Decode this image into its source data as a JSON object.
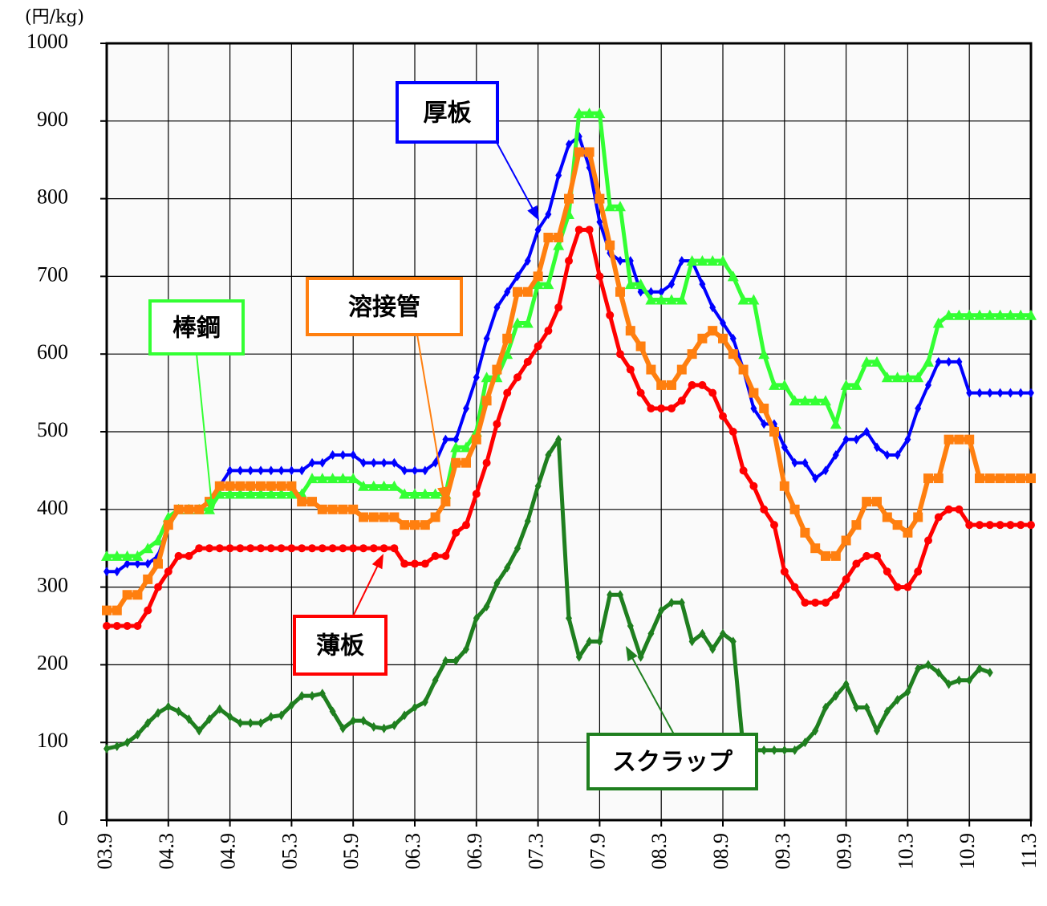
{
  "chart_data": {
    "type": "line",
    "ylabel": "(円/kg)",
    "categories": [
      "03.9",
      null,
      null,
      null,
      null,
      null,
      "04.3",
      null,
      null,
      null,
      null,
      null,
      "04.9",
      null,
      null,
      null,
      null,
      null,
      "05.3",
      null,
      null,
      null,
      null,
      null,
      "05.9",
      null,
      null,
      null,
      null,
      null,
      "06.3",
      null,
      null,
      null,
      null,
      null,
      "06.9",
      null,
      null,
      null,
      null,
      null,
      "07.3",
      null,
      null,
      null,
      null,
      null,
      "07.9",
      null,
      null,
      null,
      null,
      null,
      "08.3",
      null,
      null,
      null,
      null,
      null,
      "08.9",
      null,
      null,
      null,
      null,
      null,
      "09.3",
      null,
      null,
      null,
      null,
      null,
      "09.9",
      null,
      null,
      null,
      null,
      null,
      "10.3",
      null,
      null,
      null,
      null,
      null,
      "10.9",
      null,
      null,
      null,
      null,
      null,
      "11.3"
    ],
    "ylim": [
      0,
      1000
    ],
    "yticks": [
      0,
      100,
      200,
      300,
      400,
      500,
      600,
      700,
      800,
      900,
      1000
    ],
    "grid": true,
    "series": [
      {
        "name": "スクラップ",
        "color": "#1f7f1f",
        "marker": "diamond",
        "values": [
          92,
          95,
          100,
          110,
          125,
          138,
          146,
          140,
          130,
          115,
          130,
          143,
          133,
          125,
          125,
          125,
          133,
          135,
          148,
          160,
          160,
          163,
          140,
          118,
          128,
          128,
          120,
          118,
          122,
          135,
          145,
          152,
          180,
          205,
          205,
          220,
          260,
          275,
          305,
          325,
          350,
          385,
          430,
          470,
          490,
          260,
          210,
          230,
          230,
          290,
          290,
          250,
          210,
          240,
          270,
          280,
          280,
          230,
          240,
          220,
          240,
          230,
          90,
          90,
          90,
          90,
          90,
          90,
          100,
          115,
          145,
          160,
          175,
          145,
          145,
          115,
          140,
          155,
          165,
          195,
          200,
          190,
          175,
          180,
          180,
          195,
          190,
          null,
          null,
          null,
          null
        ]
      },
      {
        "name": "厚板",
        "color": "#0000ff",
        "marker": "diamond",
        "values": [
          320,
          320,
          330,
          330,
          330,
          340,
          380,
          400,
          400,
          400,
          410,
          430,
          450,
          450,
          450,
          450,
          450,
          450,
          450,
          450,
          460,
          460,
          470,
          470,
          470,
          460,
          460,
          460,
          460,
          450,
          450,
          450,
          460,
          490,
          490,
          530,
          570,
          620,
          660,
          680,
          700,
          720,
          760,
          780,
          830,
          870,
          880,
          840,
          770,
          730,
          720,
          720,
          680,
          680,
          680,
          690,
          720,
          720,
          690,
          660,
          640,
          620,
          580,
          530,
          510,
          510,
          480,
          460,
          460,
          440,
          450,
          470,
          490,
          490,
          500,
          480,
          470,
          470,
          490,
          530,
          560,
          590,
          590,
          590,
          550,
          550,
          550,
          550,
          550,
          550,
          550
        ]
      },
      {
        "name": "棒鋼",
        "color": "#33ff33",
        "marker": "triangle",
        "values": [
          340,
          340,
          340,
          340,
          350,
          360,
          390,
          400,
          400,
          400,
          400,
          420,
          420,
          420,
          420,
          420,
          420,
          420,
          420,
          420,
          440,
          440,
          440,
          440,
          440,
          430,
          430,
          430,
          430,
          420,
          420,
          420,
          420,
          420,
          480,
          480,
          500,
          570,
          570,
          600,
          640,
          640,
          690,
          690,
          740,
          780,
          910,
          910,
          910,
          790,
          790,
          690,
          690,
          670,
          670,
          670,
          670,
          720,
          720,
          720,
          720,
          700,
          670,
          670,
          600,
          560,
          560,
          540,
          540,
          540,
          540,
          510,
          560,
          560,
          590,
          590,
          570,
          570,
          570,
          570,
          590,
          640,
          650,
          650,
          650,
          650,
          650,
          650,
          650,
          650,
          650
        ]
      },
      {
        "name": "薄板",
        "color": "#ff0000",
        "marker": "circle",
        "values": [
          250,
          250,
          250,
          250,
          270,
          300,
          320,
          340,
          340,
          350,
          350,
          350,
          350,
          350,
          350,
          350,
          350,
          350,
          350,
          350,
          350,
          350,
          350,
          350,
          350,
          350,
          350,
          350,
          350,
          330,
          330,
          330,
          340,
          340,
          370,
          380,
          420,
          460,
          510,
          550,
          570,
          590,
          610,
          630,
          660,
          720,
          760,
          760,
          700,
          650,
          600,
          580,
          550,
          530,
          530,
          530,
          540,
          560,
          560,
          550,
          520,
          500,
          450,
          430,
          400,
          380,
          320,
          300,
          280,
          280,
          280,
          290,
          310,
          330,
          340,
          340,
          320,
          300,
          300,
          320,
          360,
          390,
          400,
          400,
          380,
          380,
          380,
          380,
          380,
          380,
          380
        ]
      },
      {
        "name": "溶接管",
        "color": "#ff7f0f",
        "marker": "square",
        "values": [
          270,
          270,
          290,
          290,
          310,
          330,
          380,
          400,
          400,
          400,
          410,
          430,
          430,
          430,
          430,
          430,
          430,
          430,
          430,
          410,
          410,
          400,
          400,
          400,
          400,
          390,
          390,
          390,
          390,
          380,
          380,
          380,
          390,
          410,
          460,
          460,
          490,
          540,
          580,
          620,
          680,
          680,
          700,
          750,
          750,
          800,
          860,
          860,
          800,
          740,
          680,
          630,
          610,
          580,
          560,
          560,
          580,
          600,
          620,
          630,
          620,
          600,
          580,
          550,
          530,
          500,
          430,
          400,
          370,
          350,
          340,
          340,
          360,
          380,
          410,
          410,
          390,
          380,
          370,
          390,
          440,
          440,
          490,
          490,
          490,
          440,
          440,
          440,
          440,
          440,
          440
        ]
      }
    ]
  }
}
